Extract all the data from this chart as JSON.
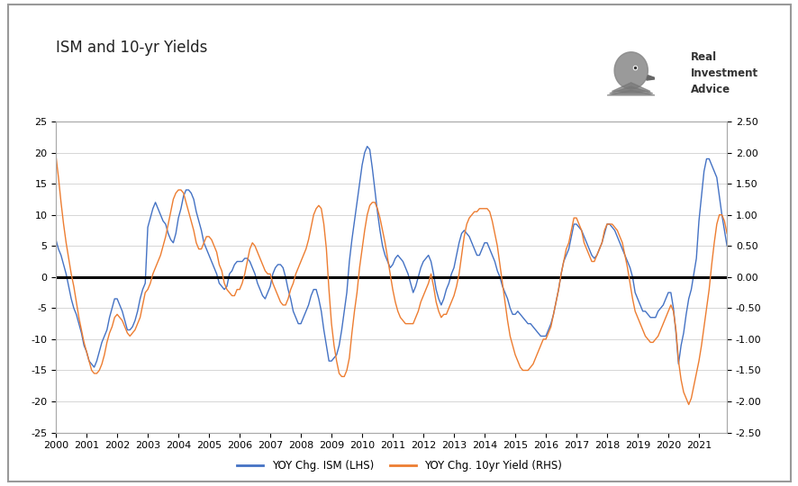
{
  "title": "ISM and 10-yr Yields",
  "legend_ism": "YOY Chg. ISM (LHS)",
  "legend_yield": "YOY Chg. 10yr Yield (RHS)",
  "ism_color": "#4472C4",
  "yield_color": "#ED7D31",
  "zero_line_color": "#000000",
  "background_color": "#FFFFFF",
  "plot_bg_color": "#FFFFFF",
  "lhs_ylim": [
    -25,
    25
  ],
  "rhs_ylim": [
    -2.5,
    2.5
  ],
  "lhs_yticks": [
    -25,
    -20,
    -15,
    -10,
    -5,
    0,
    5,
    10,
    15,
    20,
    25
  ],
  "rhs_yticks": [
    -2.5,
    -2.0,
    -1.5,
    -1.0,
    -0.5,
    0.0,
    0.5,
    1.0,
    1.5,
    2.0,
    2.5
  ],
  "xtick_labels": [
    "2000",
    "2001",
    "2002",
    "2003",
    "2004",
    "2005",
    "2006",
    "2007",
    "2008",
    "2009",
    "2010",
    "2011",
    "2012",
    "2013",
    "2014",
    "2015",
    "2016",
    "2017",
    "2018",
    "2019",
    "2020",
    "2021"
  ],
  "ism_yoy": [
    6.0,
    4.5,
    3.5,
    2.0,
    0.5,
    -1.5,
    -3.5,
    -5.0,
    -6.0,
    -7.5,
    -9.0,
    -11.0,
    -12.0,
    -13.5,
    -14.0,
    -14.5,
    -13.5,
    -12.0,
    -10.5,
    -9.5,
    -8.5,
    -6.5,
    -5.0,
    -3.5,
    -3.5,
    -4.5,
    -5.5,
    -7.0,
    -8.5,
    -8.5,
    -8.0,
    -7.0,
    -5.5,
    -3.5,
    -2.0,
    -1.0,
    8.0,
    9.5,
    11.0,
    12.0,
    11.0,
    10.0,
    9.0,
    8.5,
    7.0,
    6.0,
    5.5,
    7.0,
    9.5,
    11.0,
    13.0,
    14.0,
    14.0,
    13.5,
    12.5,
    10.5,
    9.0,
    7.5,
    5.5,
    4.5,
    3.5,
    2.5,
    1.5,
    0.5,
    -1.0,
    -1.5,
    -2.0,
    -1.5,
    0.5,
    1.0,
    2.0,
    2.5,
    2.5,
    2.5,
    3.0,
    3.0,
    2.5,
    1.5,
    0.5,
    -1.0,
    -2.0,
    -3.0,
    -3.5,
    -2.5,
    -1.5,
    0.5,
    1.5,
    2.0,
    2.0,
    1.5,
    0.0,
    -2.0,
    -3.5,
    -5.5,
    -6.5,
    -7.5,
    -7.5,
    -6.5,
    -5.5,
    -4.5,
    -3.0,
    -2.0,
    -2.0,
    -3.5,
    -5.5,
    -8.5,
    -11.0,
    -13.5,
    -13.5,
    -13.0,
    -12.5,
    -11.0,
    -8.5,
    -5.5,
    -2.5,
    2.5,
    6.0,
    9.0,
    12.0,
    15.0,
    18.0,
    20.0,
    21.0,
    20.5,
    17.5,
    14.0,
    10.5,
    7.5,
    5.0,
    3.5,
    2.5,
    1.5,
    2.0,
    3.0,
    3.5,
    3.0,
    2.5,
    1.5,
    0.5,
    -1.0,
    -2.5,
    -1.5,
    0.0,
    1.5,
    2.5,
    3.0,
    3.5,
    2.5,
    0.5,
    -2.0,
    -3.5,
    -4.5,
    -3.5,
    -2.0,
    -1.0,
    0.5,
    1.5,
    3.5,
    5.5,
    7.0,
    7.5,
    7.0,
    6.5,
    5.5,
    4.5,
    3.5,
    3.5,
    4.5,
    5.5,
    5.5,
    4.5,
    3.5,
    2.5,
    1.0,
    0.0,
    -1.5,
    -2.5,
    -3.5,
    -5.0,
    -6.0,
    -6.0,
    -5.5,
    -6.0,
    -6.5,
    -7.0,
    -7.5,
    -7.5,
    -8.0,
    -8.5,
    -9.0,
    -9.5,
    -9.5,
    -9.5,
    -8.5,
    -7.5,
    -6.0,
    -4.0,
    -2.0,
    0.5,
    2.5,
    3.5,
    4.5,
    6.5,
    8.5,
    8.5,
    8.0,
    7.5,
    6.5,
    5.5,
    4.5,
    3.5,
    3.0,
    3.5,
    4.5,
    5.5,
    7.0,
    8.5,
    8.5,
    8.0,
    7.5,
    6.5,
    5.5,
    4.5,
    3.5,
    2.5,
    1.5,
    0.0,
    -2.5,
    -3.5,
    -4.5,
    -5.5,
    -5.5,
    -6.0,
    -6.5,
    -6.5,
    -6.5,
    -5.5,
    -5.0,
    -4.5,
    -3.5,
    -2.5,
    -2.5,
    -5.0,
    -9.0,
    -14.0,
    -11.0,
    -9.0,
    -6.0,
    -3.5,
    -2.0,
    0.5,
    3.0,
    9.0,
    13.0,
    17.0,
    19.0,
    19.0,
    18.0,
    17.0,
    16.0,
    13.0,
    10.0,
    7.5,
    5.0
  ],
  "yield_yoy": [
    1.95,
    1.6,
    1.2,
    0.85,
    0.55,
    0.3,
    0.05,
    -0.15,
    -0.4,
    -0.65,
    -0.85,
    -1.05,
    -1.2,
    -1.35,
    -1.5,
    -1.55,
    -1.55,
    -1.5,
    -1.4,
    -1.25,
    -1.05,
    -0.9,
    -0.8,
    -0.65,
    -0.6,
    -0.65,
    -0.7,
    -0.8,
    -0.9,
    -0.95,
    -0.9,
    -0.85,
    -0.75,
    -0.65,
    -0.45,
    -0.25,
    -0.2,
    -0.1,
    0.05,
    0.15,
    0.25,
    0.35,
    0.5,
    0.65,
    0.85,
    1.05,
    1.25,
    1.35,
    1.4,
    1.4,
    1.35,
    1.2,
    1.05,
    0.9,
    0.75,
    0.55,
    0.45,
    0.45,
    0.55,
    0.65,
    0.65,
    0.6,
    0.5,
    0.4,
    0.2,
    0.1,
    -0.1,
    -0.2,
    -0.25,
    -0.3,
    -0.3,
    -0.2,
    -0.2,
    -0.1,
    0.05,
    0.25,
    0.45,
    0.55,
    0.5,
    0.4,
    0.3,
    0.2,
    0.1,
    0.05,
    0.05,
    -0.1,
    -0.2,
    -0.3,
    -0.4,
    -0.45,
    -0.45,
    -0.35,
    -0.2,
    -0.1,
    0.05,
    0.15,
    0.25,
    0.35,
    0.45,
    0.6,
    0.8,
    1.0,
    1.1,
    1.15,
    1.1,
    0.85,
    0.45,
    -0.2,
    -0.75,
    -1.1,
    -1.35,
    -1.55,
    -1.6,
    -1.6,
    -1.5,
    -1.3,
    -0.9,
    -0.55,
    -0.25,
    0.15,
    0.45,
    0.75,
    1.0,
    1.15,
    1.2,
    1.2,
    1.1,
    0.95,
    0.75,
    0.55,
    0.3,
    0.05,
    -0.2,
    -0.4,
    -0.55,
    -0.65,
    -0.7,
    -0.75,
    -0.75,
    -0.75,
    -0.75,
    -0.65,
    -0.55,
    -0.4,
    -0.3,
    -0.2,
    -0.1,
    0.05,
    -0.15,
    -0.4,
    -0.55,
    -0.65,
    -0.6,
    -0.6,
    -0.5,
    -0.4,
    -0.3,
    -0.15,
    0.05,
    0.35,
    0.65,
    0.85,
    0.95,
    1.0,
    1.05,
    1.05,
    1.1,
    1.1,
    1.1,
    1.1,
    1.05,
    0.9,
    0.7,
    0.5,
    0.2,
    -0.1,
    -0.4,
    -0.7,
    -0.95,
    -1.1,
    -1.25,
    -1.35,
    -1.45,
    -1.5,
    -1.5,
    -1.5,
    -1.45,
    -1.4,
    -1.3,
    -1.2,
    -1.1,
    -1.0,
    -1.0,
    -0.9,
    -0.8,
    -0.6,
    -0.4,
    -0.2,
    0.05,
    0.25,
    0.45,
    0.55,
    0.75,
    0.95,
    0.95,
    0.85,
    0.75,
    0.55,
    0.45,
    0.35,
    0.25,
    0.25,
    0.35,
    0.45,
    0.55,
    0.75,
    0.85,
    0.85,
    0.85,
    0.8,
    0.75,
    0.65,
    0.55,
    0.35,
    0.15,
    -0.1,
    -0.35,
    -0.55,
    -0.65,
    -0.75,
    -0.85,
    -0.95,
    -1.0,
    -1.05,
    -1.05,
    -1.0,
    -0.95,
    -0.85,
    -0.75,
    -0.65,
    -0.55,
    -0.45,
    -0.55,
    -0.85,
    -1.35,
    -1.65,
    -1.85,
    -1.95,
    -2.05,
    -1.95,
    -1.75,
    -1.55,
    -1.35,
    -1.1,
    -0.8,
    -0.5,
    -0.2,
    0.2,
    0.55,
    0.85,
    1.0,
    1.0,
    0.9,
    0.7
  ]
}
